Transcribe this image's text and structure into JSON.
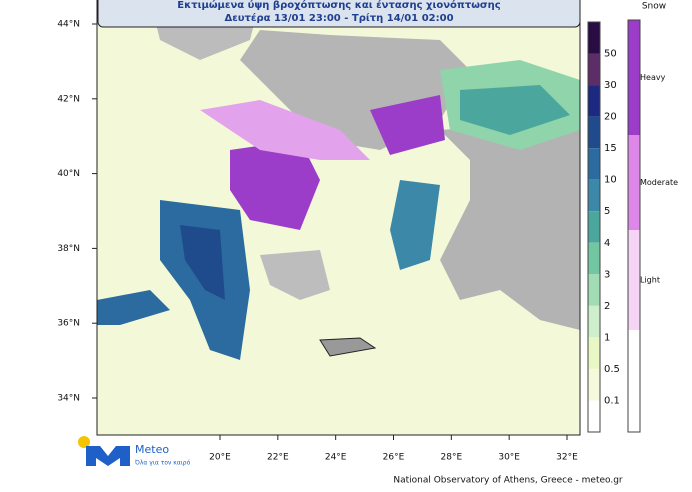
{
  "title": {
    "line1": "Εκτιμώμενα ύψη βροχόπτωσης και έντασης χιονόπτωσης",
    "line2": "Δευτέρα 13/01 23:00 - Τρίτη 14/01 02:00"
  },
  "map": {
    "lat_labels": [
      "44°N",
      "42°N",
      "40°N",
      "38°N",
      "36°N",
      "34°N"
    ],
    "lon_labels": [
      "20°E",
      "22°E",
      "24°E",
      "26°E",
      "28°E",
      "30°E",
      "32°E"
    ]
  },
  "rain_legend": {
    "labels": [
      "50",
      "30",
      "20",
      "15",
      "10",
      "5",
      "4",
      "3",
      "2",
      "1",
      "0.5",
      "0.1"
    ],
    "colors": [
      "#2a0c45",
      "#5c2d66",
      "#1b2a80",
      "#1f4b8c",
      "#2b6b9f",
      "#3b88a8",
      "#4ba79e",
      "#72c6a2",
      "#a2dcb4",
      "#cdefcb",
      "#e9f7c4",
      "#f5fadc",
      "#ffffff"
    ]
  },
  "snow_legend": {
    "title": "Snow",
    "labels": [
      "Heavy",
      "Moderate",
      "Light"
    ],
    "colors": [
      "#9b3dc8",
      "#dd88e8",
      "#f6d4f6",
      "#ffffff"
    ]
  },
  "logo": {
    "name": "Meteo",
    "tagline": "Όλα για τον καιρό"
  },
  "footer": "National Observatory of Athens, Greece - meteo.gr"
}
